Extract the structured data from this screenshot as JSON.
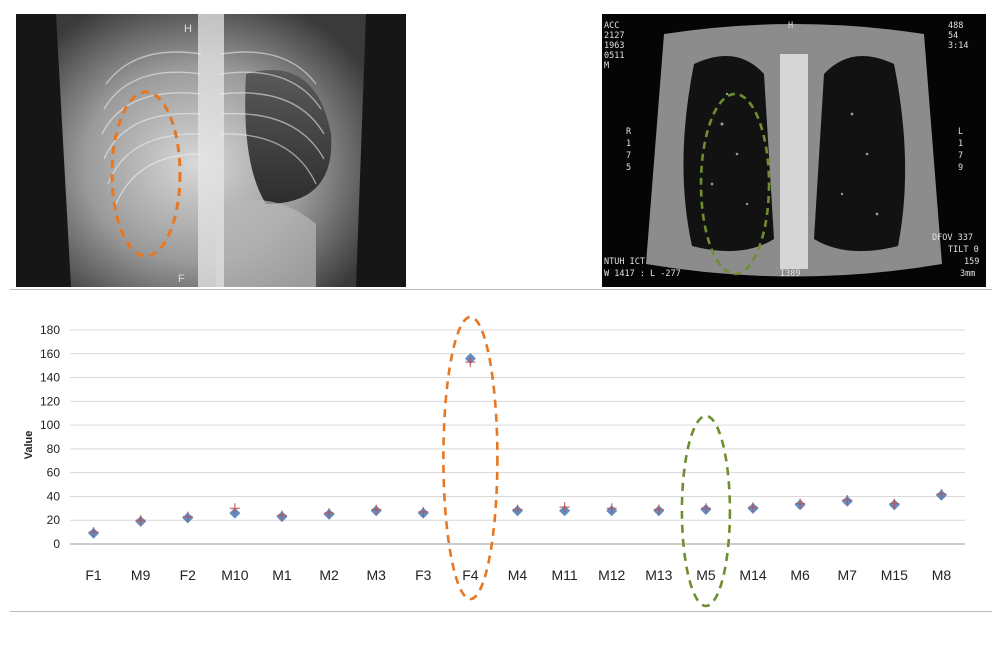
{
  "xray": {
    "top_marker": "H",
    "bottom_marker": "F",
    "highlight_color": "#E87722"
  },
  "ct": {
    "header_left": [
      "ACC",
      "2127",
      "1963",
      "0511",
      "M"
    ],
    "header_right": [
      "488",
      "54",
      "3:14"
    ],
    "side_left": [
      "R",
      "1",
      "7",
      "5"
    ],
    "side_right": [
      "L",
      "1",
      "7",
      "9"
    ],
    "footer_left": [
      "NTUH  ICT",
      "W 1417 : L -277"
    ],
    "footer_center": "I389",
    "footer_right": [
      "DFOV 337",
      "TILT 0",
      "159",
      "3mm"
    ],
    "top_marker": "H",
    "highlight_color": "#6E8E2F"
  },
  "chart_data": {
    "type": "scatter",
    "ylabel": "Value",
    "xlabel": "",
    "ylim": [
      0,
      180
    ],
    "yticks": [
      0,
      20,
      40,
      60,
      80,
      100,
      120,
      140,
      160,
      180
    ],
    "grid": true,
    "categories": [
      "F1",
      "M9",
      "F2",
      "M10",
      "M1",
      "M2",
      "M3",
      "F3",
      "F4",
      "M4",
      "M11",
      "M12",
      "M13",
      "M5",
      "M14",
      "M6",
      "M7",
      "M15",
      "M8"
    ],
    "series": [
      {
        "values": [
          9,
          19,
          22,
          26,
          23,
          25,
          28,
          26,
          156,
          28,
          28,
          28,
          28,
          29,
          30,
          33,
          36,
          33,
          41
        ],
        "color": "#4F81BD",
        "marker": "diamond"
      },
      {
        "values": [
          10,
          20,
          23,
          30,
          24,
          26,
          29,
          27,
          153,
          29,
          31,
          30,
          29,
          30,
          31,
          34,
          37,
          34,
          42
        ],
        "color": "#C0504D",
        "marker": "plus"
      }
    ],
    "highlights": [
      {
        "category": "F4",
        "color": "#E87722"
      },
      {
        "category": "M5",
        "color": "#6E8E2F"
      }
    ]
  }
}
